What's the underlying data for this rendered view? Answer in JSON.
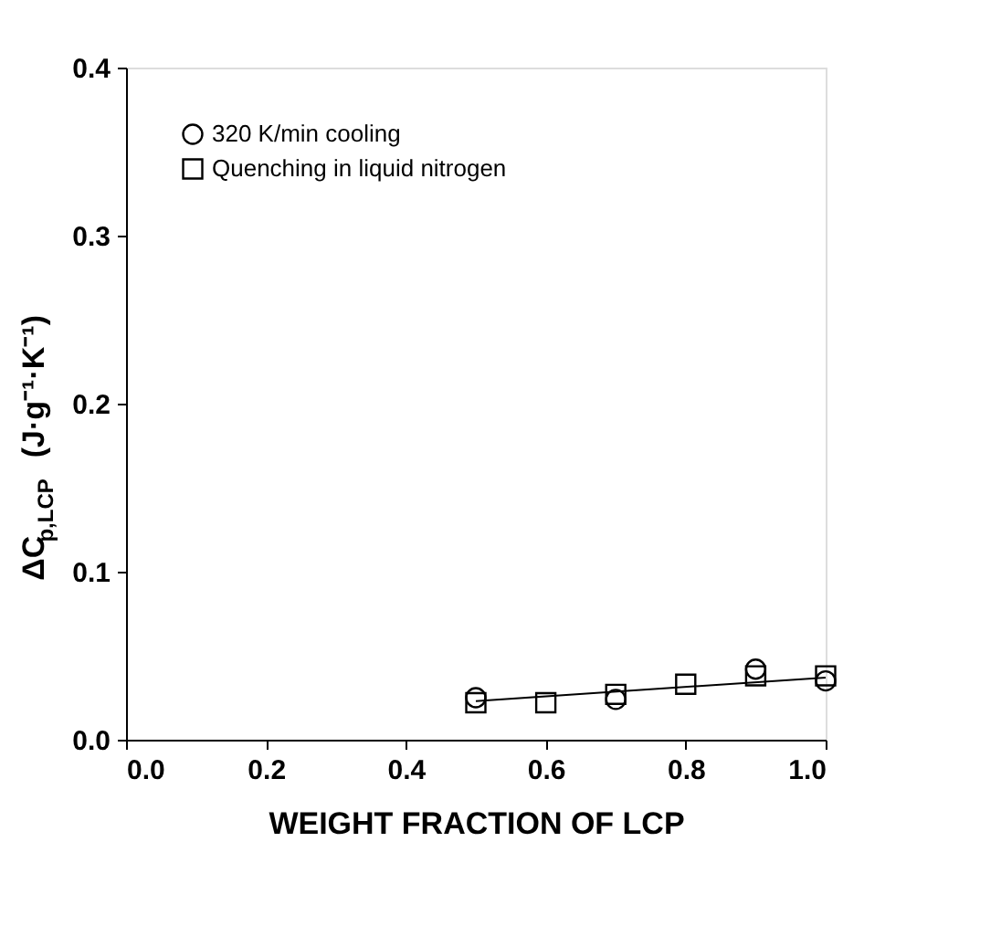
{
  "chart_data": {
    "type": "scatter",
    "xlabel": "WEIGHT FRACTION OF LCP",
    "ylabel": "ΔC$_{p,LCP}$ (J·g⁻¹·K⁻¹)",
    "xlim": [
      0.0,
      1.0
    ],
    "ylim": [
      0.0,
      0.4
    ],
    "xticks": [
      {
        "value": 0,
        "label": "0.0"
      },
      0.2,
      0.4,
      0.6,
      0.8,
      {
        "value": 1,
        "label": "1.0"
      }
    ],
    "yticks": [
      {
        "value": 0,
        "label": "0.0"
      },
      0.1,
      0.2,
      0.3,
      0.4
    ],
    "grid": false,
    "legend": "top left",
    "series": [
      {
        "name": "320 K/min cooling",
        "color": "#000000",
        "marker": "circle",
        "x": [
          0.5,
          0.7,
          0.9,
          1.0
        ],
        "values": [
          0.025,
          0.024,
          0.042,
          0.035
        ]
      },
      {
        "name": "Quenching in liquid nitrogen",
        "color": "#000000",
        "marker": "square",
        "x": [
          0.5,
          0.6,
          0.7,
          0.8,
          0.9,
          1.0
        ],
        "values": [
          0.022,
          0.022,
          0.027,
          0.033,
          0.038,
          0.038
        ]
      },
      {
        "type": "line",
        "color": "#000000",
        "marker": "none",
        "line_style": "solid",
        "x": [
          0.5,
          1.0
        ],
        "values": [
          0.023,
          0.037
        ]
      }
    ]
  }
}
